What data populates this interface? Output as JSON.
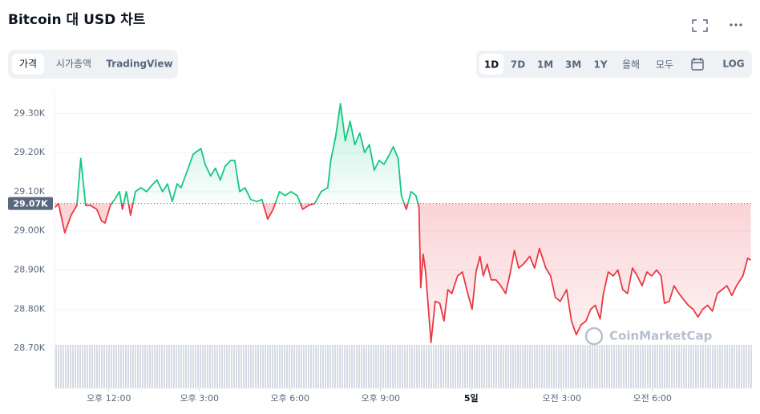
{
  "header": {
    "title": "Bitcoin 대 USD 차트",
    "tabs": [
      "가격",
      "시가총액",
      "TradingView"
    ],
    "ranges": [
      "1D",
      "7D",
      "1M",
      "3M",
      "1Y",
      "올해",
      "모두"
    ],
    "log": "LOG"
  },
  "chart_data": {
    "type": "line",
    "watermark": "CoinMarketCap",
    "x": [
      10.22,
      10.33,
      10.54,
      10.75,
      10.94,
      11.07,
      11.23,
      11.39,
      11.6,
      11.76,
      11.87,
      12.05,
      12.19,
      12.35,
      12.45,
      12.58,
      12.72,
      12.88,
      13.06,
      13.25,
      13.41,
      13.59,
      13.78,
      13.94,
      14.1,
      14.26,
      14.39,
      14.58,
      14.79,
      14.95,
      15.05,
      15.19,
      15.37,
      15.53,
      15.69,
      15.85,
      16.04,
      16.17,
      16.33,
      16.51,
      16.7,
      16.91,
      17.07,
      17.26,
      17.44,
      17.65,
      17.84,
      18.03,
      18.24,
      18.42,
      18.61,
      18.82,
      19.03,
      19.25,
      19.35,
      19.51,
      19.67,
      19.83,
      19.99,
      20.15,
      20.31,
      20.47,
      20.63,
      20.79,
      20.95,
      21.11,
      21.26,
      21.42,
      21.58,
      21.69,
      21.85,
      22.01,
      22.17,
      22.27,
      22.33,
      22.41,
      22.49,
      22.67,
      22.81,
      22.96,
      23.1,
      23.23,
      23.36,
      23.55,
      23.71,
      23.87,
      24.03,
      24.16,
      24.29,
      24.4,
      24.53,
      24.66,
      24.82,
      24.98,
      25.14,
      25.3,
      25.43,
      25.57,
      25.73,
      25.94,
      26.1,
      26.26,
      26.47,
      26.63,
      26.79,
      26.95,
      27.16,
      27.32,
      27.48,
      27.64,
      27.8,
      27.96,
      28.11,
      28.27,
      28.38,
      28.54,
      28.7,
      28.86,
      29.02,
      29.18,
      29.34,
      29.5,
      29.66,
      29.82,
      29.98,
      30.14,
      30.29,
      30.4,
      30.56,
      30.72,
      30.88,
      31.03,
      31.19,
      31.35,
      31.51,
      31.67,
      31.83,
      31.99,
      32.15,
      32.31,
      32.47,
      32.63,
      32.79,
      33.0,
      33.16,
      33.26
    ],
    "values": [
      29060,
      29070,
      28995,
      29040,
      29065,
      29185,
      29065,
      29065,
      29055,
      29025,
      29020,
      29065,
      29080,
      29100,
      29055,
      29100,
      29040,
      29100,
      29110,
      29100,
      29115,
      29130,
      29100,
      29120,
      29075,
      29120,
      29110,
      29150,
      29195,
      29205,
      29210,
      29170,
      29140,
      29160,
      29130,
      29165,
      29180,
      29180,
      29100,
      29110,
      29080,
      29075,
      29080,
      29030,
      29055,
      29100,
      29090,
      29100,
      29090,
      29055,
      29065,
      29070,
      29100,
      29110,
      29180,
      29240,
      29325,
      29230,
      29280,
      29220,
      29250,
      29200,
      29220,
      29155,
      29180,
      29170,
      29190,
      29215,
      29185,
      29090,
      29055,
      29100,
      29090,
      29060,
      28855,
      28940,
      28895,
      28715,
      28820,
      28815,
      28770,
      28850,
      28840,
      28885,
      28895,
      28845,
      28800,
      28895,
      28935,
      28885,
      28915,
      28875,
      28875,
      28860,
      28840,
      28895,
      28950,
      28905,
      28915,
      28935,
      28905,
      28955,
      28905,
      28885,
      28830,
      28820,
      28850,
      28770,
      28735,
      28760,
      28770,
      28800,
      28810,
      28775,
      28840,
      28895,
      28885,
      28900,
      28850,
      28840,
      28905,
      28885,
      28860,
      28895,
      28885,
      28900,
      28885,
      28815,
      28820,
      28860,
      28840,
      28825,
      28810,
      28800,
      28780,
      28800,
      28810,
      28795,
      28840,
      28850,
      28860,
      28835,
      28860,
      28885,
      28930,
      28925
    ],
    "up_color": "#16c784",
    "down_color": "#ea3943",
    "reference": {
      "value": 29070,
      "label": "29.07K"
    },
    "xlim": [
      10.2,
      33.3
    ],
    "ylim": [
      28600,
      29360
    ],
    "xticks": [
      {
        "value": 12,
        "label": "오후 12:00"
      },
      {
        "value": 15,
        "label": "오후 3:00"
      },
      {
        "value": 18,
        "label": "오후 6:00"
      },
      {
        "value": 21,
        "label": "오후 9:00"
      },
      {
        "value": 24,
        "label": "5일"
      },
      {
        "value": 27,
        "label": "오전 3:00"
      },
      {
        "value": 30,
        "label": "오전 6:00"
      }
    ],
    "yticks": [
      {
        "value": 28700,
        "label": "28.70K"
      },
      {
        "value": 28800,
        "label": "28.80K"
      },
      {
        "value": 28900,
        "label": "28.90K"
      },
      {
        "value": 29000,
        "label": "29.00K"
      },
      {
        "value": 29100,
        "label": "29.10K"
      },
      {
        "value": 29200,
        "label": "29.20K"
      },
      {
        "value": 29300,
        "label": "29.30K"
      }
    ],
    "grid": true
  }
}
